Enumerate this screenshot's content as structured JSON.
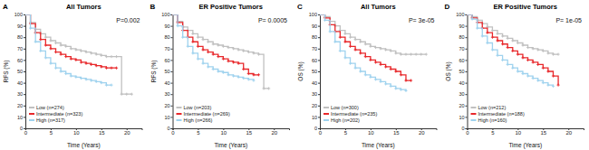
{
  "chart_data": [
    {
      "type": "line",
      "panel_label": "A",
      "title": "All Tumors",
      "annotation": "P=0.002",
      "x_label": "Time (Years)",
      "y_label": "RFS (%)",
      "xlim": [
        0,
        23
      ],
      "xticks": [
        0,
        5,
        10,
        15,
        20
      ],
      "ylim": [
        0,
        100
      ],
      "yticks": [
        0,
        10,
        20,
        30,
        40,
        50,
        60,
        70,
        80,
        90,
        100
      ],
      "line_style": "step",
      "marker": "plus",
      "legend": "lower left",
      "x": [
        0,
        1,
        2,
        3,
        4,
        5,
        6,
        7,
        8,
        9,
        10,
        11,
        12,
        13,
        14,
        15,
        16,
        17,
        18,
        19,
        20,
        21,
        22
      ],
      "series": [
        {
          "name": "Low (n=274)",
          "color": "#c0c0c0",
          "values": [
            100,
            93,
            87,
            83,
            80,
            77,
            75,
            73,
            72,
            70,
            69,
            68,
            67,
            66,
            65,
            64,
            63,
            63,
            63,
            30,
            30,
            30,
            null
          ]
        },
        {
          "name": "Intermediate (n=323)",
          "color": "#e8282b",
          "values": [
            100,
            92,
            84,
            78,
            73,
            70,
            67,
            65,
            63,
            61,
            60,
            58,
            57,
            56,
            55,
            54,
            53,
            53,
            53,
            null,
            null,
            null,
            null
          ]
        },
        {
          "name": "High (n=317)",
          "color": "#9fd2ee",
          "values": [
            100,
            88,
            76,
            68,
            62,
            57,
            53,
            50,
            48,
            46,
            45,
            44,
            43,
            42,
            41,
            40,
            38,
            38,
            null,
            null,
            null,
            null,
            null
          ]
        }
      ]
    },
    {
      "type": "line",
      "panel_label": "B",
      "title": "ER Positive Tumors",
      "annotation": "P= 0.0005",
      "x_label": "Time (Years)",
      "y_label": "RFS (%)",
      "xlim": [
        0,
        23
      ],
      "xticks": [
        0,
        5,
        10,
        15,
        20
      ],
      "ylim": [
        0,
        100
      ],
      "yticks": [
        0,
        10,
        20,
        30,
        40,
        50,
        60,
        70,
        80,
        90,
        100
      ],
      "line_style": "step",
      "marker": "plus",
      "legend": "lower left",
      "x": [
        0,
        1,
        2,
        3,
        4,
        5,
        6,
        7,
        8,
        9,
        10,
        11,
        12,
        13,
        14,
        15,
        16,
        17,
        18,
        19,
        20,
        21,
        22
      ],
      "series": [
        {
          "name": "Low (n=203)",
          "color": "#c0c0c0",
          "values": [
            100,
            94,
            89,
            86,
            83,
            80,
            78,
            76,
            74,
            73,
            72,
            71,
            70,
            69,
            68,
            67,
            66,
            65,
            35,
            35,
            null,
            null,
            null
          ]
        },
        {
          "name": "Intermediate (n=269)",
          "color": "#e8282b",
          "values": [
            100,
            93,
            86,
            80,
            76,
            72,
            69,
            67,
            65,
            63,
            61,
            59,
            58,
            57,
            52,
            48,
            47,
            47,
            null,
            null,
            null,
            null,
            null
          ]
        },
        {
          "name": "High (n=266)",
          "color": "#9fd2ee",
          "values": [
            100,
            90,
            80,
            72,
            66,
            61,
            57,
            54,
            52,
            50,
            49,
            47,
            46,
            45,
            44,
            43,
            42,
            null,
            null,
            null,
            null,
            null,
            null
          ]
        }
      ]
    },
    {
      "type": "line",
      "panel_label": "C",
      "title": "All Tumors",
      "annotation": "P= 3e-05",
      "x_label": "Time (Years)",
      "y_label": "OS (%)",
      "xlim": [
        0,
        23
      ],
      "xticks": [
        0,
        5,
        10,
        15,
        20
      ],
      "ylim": [
        0,
        100
      ],
      "yticks": [
        0,
        10,
        20,
        30,
        40,
        50,
        60,
        70,
        80,
        90,
        100
      ],
      "line_style": "step",
      "marker": "plus",
      "legend": "lower left",
      "x": [
        0,
        1,
        2,
        3,
        4,
        5,
        6,
        7,
        8,
        9,
        10,
        11,
        12,
        13,
        14,
        15,
        16,
        17,
        18,
        19,
        20,
        21,
        22
      ],
      "series": [
        {
          "name": "Low (n=300)",
          "color": "#c0c0c0",
          "values": [
            100,
            98,
            94,
            90,
            86,
            83,
            80,
            78,
            76,
            74,
            72,
            71,
            70,
            69,
            68,
            66,
            65,
            65,
            65,
            65,
            65,
            65,
            null
          ]
        },
        {
          "name": "Intermediate (n=235)",
          "color": "#e8282b",
          "values": [
            100,
            97,
            91,
            85,
            80,
            76,
            72,
            69,
            66,
            63,
            60,
            58,
            56,
            54,
            52,
            50,
            47,
            42,
            42,
            null,
            null,
            null,
            null
          ]
        },
        {
          "name": "High (n=202)",
          "color": "#9fd2ee",
          "values": [
            100,
            95,
            85,
            76,
            68,
            62,
            57,
            53,
            50,
            47,
            45,
            43,
            41,
            39,
            37,
            35,
            34,
            33,
            null,
            null,
            null,
            null,
            null
          ]
        }
      ]
    },
    {
      "type": "line",
      "panel_label": "D",
      "title": "ER Positive Tumors",
      "annotation": "P= 1e-05",
      "x_label": "Time (Years)",
      "y_label": "OS (%)",
      "xlim": [
        0,
        23
      ],
      "xticks": [
        0,
        5,
        10,
        15,
        20
      ],
      "ylim": [
        0,
        100
      ],
      "yticks": [
        0,
        10,
        20,
        30,
        40,
        50,
        60,
        70,
        80,
        90,
        100
      ],
      "line_style": "step",
      "marker": "plus",
      "legend": "lower left",
      "x": [
        0,
        1,
        2,
        3,
        4,
        5,
        6,
        7,
        8,
        9,
        10,
        11,
        12,
        13,
        14,
        15,
        16,
        17,
        18,
        19,
        20,
        21,
        22
      ],
      "series": [
        {
          "name": "Low (n=212)",
          "color": "#c0c0c0",
          "values": [
            100,
            98,
            95,
            92,
            89,
            86,
            83,
            81,
            79,
            77,
            75,
            73,
            71,
            70,
            69,
            68,
            66,
            65,
            65,
            null,
            null,
            null,
            null
          ]
        },
        {
          "name": "Intermediate (n=188)",
          "color": "#e8282b",
          "values": [
            100,
            97,
            93,
            88,
            84,
            80,
            77,
            74,
            71,
            68,
            65,
            62,
            60,
            58,
            56,
            53,
            50,
            46,
            38,
            null,
            null,
            null,
            null
          ]
        },
        {
          "name": "High (n=160)",
          "color": "#9fd2ee",
          "values": [
            100,
            96,
            88,
            81,
            75,
            69,
            64,
            60,
            56,
            53,
            50,
            48,
            46,
            44,
            42,
            40,
            38,
            37,
            null,
            null,
            null,
            null,
            null
          ]
        }
      ]
    }
  ]
}
